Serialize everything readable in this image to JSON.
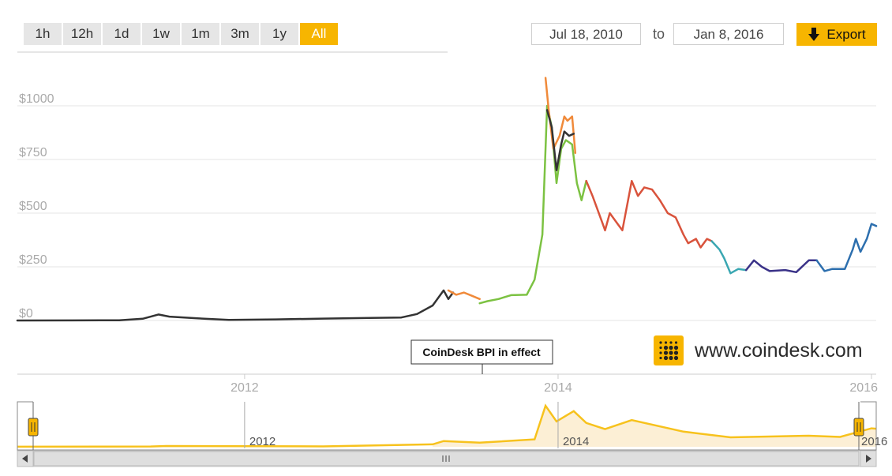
{
  "range_buttons": [
    {
      "label": "1h",
      "active": false
    },
    {
      "label": "12h",
      "active": false
    },
    {
      "label": "1d",
      "active": false
    },
    {
      "label": "1w",
      "active": false
    },
    {
      "label": "1m",
      "active": false
    },
    {
      "label": "3m",
      "active": false
    },
    {
      "label": "1y",
      "active": false
    },
    {
      "label": "All",
      "active": true
    }
  ],
  "date_range": {
    "from": "Jul 18, 2010",
    "to_label": "to",
    "to": "Jan 8, 2016"
  },
  "export": {
    "label": "Export",
    "icon": "arrow-down-icon"
  },
  "brand": {
    "text": "www.coindesk.com",
    "icon": "coindesk-logo-icon",
    "accent": "#f7b500"
  },
  "flag": {
    "label": "CoinDesk BPI in effect"
  },
  "colors": {
    "accent": "#f7b500",
    "navigator": "#f7c21d",
    "navigator_fill": "#fcefd5"
  },
  "chart_data": {
    "type": "line",
    "title": "",
    "xlabel": "",
    "ylabel": "",
    "y_ticks": [
      "$0",
      "$250",
      "$500",
      "$750",
      "$1000"
    ],
    "x_ticks": [
      "2012",
      "2014",
      "2016"
    ],
    "ylim": [
      0,
      1150
    ],
    "xlim": [
      2010.55,
      2016.03
    ],
    "grid": true,
    "legend": "none",
    "series": [
      {
        "color": "#333333",
        "points": [
          [
            2010.55,
            0.07
          ],
          [
            2010.9,
            0.2
          ],
          [
            2011.2,
            1
          ],
          [
            2011.35,
            8
          ],
          [
            2011.45,
            28
          ],
          [
            2011.52,
            18
          ],
          [
            2011.7,
            10
          ],
          [
            2011.9,
            3
          ],
          [
            2012.2,
            5
          ],
          [
            2012.5,
            9
          ],
          [
            2012.8,
            12
          ],
          [
            2013.0,
            14
          ],
          [
            2013.1,
            30
          ],
          [
            2013.2,
            70
          ],
          [
            2013.27,
            140
          ],
          [
            2013.3,
            100
          ],
          [
            2013.33,
            130
          ]
        ]
      },
      {
        "color": "#f08a3a",
        "points": [
          [
            2013.3,
            140
          ],
          [
            2013.35,
            120
          ],
          [
            2013.4,
            130
          ],
          [
            2013.45,
            115
          ],
          [
            2013.5,
            100
          ]
        ]
      },
      {
        "color": "#7cc242",
        "points": [
          [
            2013.5,
            80
          ],
          [
            2013.55,
            90
          ],
          [
            2013.62,
            100
          ],
          [
            2013.7,
            118
          ],
          [
            2013.8,
            120
          ],
          [
            2013.85,
            190
          ],
          [
            2013.9,
            400
          ],
          [
            2013.93,
            1000
          ],
          [
            2013.96,
            900
          ],
          [
            2013.99,
            640
          ],
          [
            2014.02,
            800
          ],
          [
            2014.05,
            840
          ],
          [
            2014.09,
            820
          ],
          [
            2014.12,
            640
          ],
          [
            2014.15,
            560
          ],
          [
            2014.18,
            650
          ]
        ]
      },
      {
        "color": "#f08a3a",
        "points": [
          [
            2013.92,
            1130
          ],
          [
            2013.94,
            980
          ],
          [
            2013.97,
            800
          ],
          [
            2014.01,
            860
          ],
          [
            2014.04,
            950
          ],
          [
            2014.06,
            930
          ],
          [
            2014.09,
            950
          ],
          [
            2014.11,
            780
          ]
        ]
      },
      {
        "color": "#333333",
        "points": [
          [
            2013.93,
            980
          ],
          [
            2013.96,
            900
          ],
          [
            2013.99,
            700
          ],
          [
            2014.02,
            820
          ],
          [
            2014.04,
            880
          ],
          [
            2014.07,
            860
          ],
          [
            2014.1,
            870
          ]
        ]
      },
      {
        "color": "#d9533c",
        "points": [
          [
            2014.18,
            650
          ],
          [
            2014.22,
            580
          ],
          [
            2014.28,
            460
          ],
          [
            2014.3,
            420
          ],
          [
            2014.33,
            500
          ],
          [
            2014.38,
            450
          ],
          [
            2014.41,
            420
          ],
          [
            2014.47,
            650
          ],
          [
            2014.51,
            580
          ],
          [
            2014.55,
            620
          ],
          [
            2014.6,
            610
          ],
          [
            2014.65,
            560
          ],
          [
            2014.7,
            500
          ],
          [
            2014.75,
            480
          ],
          [
            2014.8,
            400
          ],
          [
            2014.83,
            360
          ],
          [
            2014.88,
            380
          ],
          [
            2014.91,
            340
          ],
          [
            2014.95,
            380
          ],
          [
            2014.98,
            370
          ]
        ]
      },
      {
        "color": "#3aa7b2",
        "points": [
          [
            2014.98,
            370
          ],
          [
            2015.03,
            330
          ],
          [
            2015.06,
            290
          ],
          [
            2015.1,
            220
          ],
          [
            2015.15,
            240
          ],
          [
            2015.2,
            235
          ]
        ]
      },
      {
        "color": "#3a3288",
        "points": [
          [
            2015.2,
            235
          ],
          [
            2015.25,
            280
          ],
          [
            2015.3,
            250
          ],
          [
            2015.35,
            230
          ],
          [
            2015.45,
            235
          ],
          [
            2015.52,
            225
          ],
          [
            2015.6,
            280
          ],
          [
            2015.65,
            280
          ]
        ]
      },
      {
        "color": "#2d6fae",
        "points": [
          [
            2015.65,
            280
          ],
          [
            2015.7,
            230
          ],
          [
            2015.75,
            240
          ],
          [
            2015.83,
            240
          ],
          [
            2015.88,
            330
          ],
          [
            2015.9,
            380
          ],
          [
            2015.93,
            320
          ],
          [
            2015.97,
            380
          ],
          [
            2016.0,
            450
          ],
          [
            2016.03,
            440
          ]
        ]
      }
    ],
    "navigator": {
      "x_ticks": [
        "2012",
        "2014",
        "2016"
      ],
      "points": [
        [
          2010.55,
          1
        ],
        [
          2011.4,
          8
        ],
        [
          2011.5,
          20
        ],
        [
          2012.5,
          10
        ],
        [
          2013.2,
          60
        ],
        [
          2013.27,
          140
        ],
        [
          2013.5,
          100
        ],
        [
          2013.85,
          180
        ],
        [
          2013.92,
          1000
        ],
        [
          2013.99,
          620
        ],
        [
          2014.1,
          870
        ],
        [
          2014.18,
          580
        ],
        [
          2014.3,
          430
        ],
        [
          2014.47,
          650
        ],
        [
          2014.8,
          370
        ],
        [
          2015.1,
          230
        ],
        [
          2015.6,
          270
        ],
        [
          2015.8,
          240
        ],
        [
          2016.0,
          450
        ],
        [
          2016.03,
          440
        ]
      ]
    }
  }
}
